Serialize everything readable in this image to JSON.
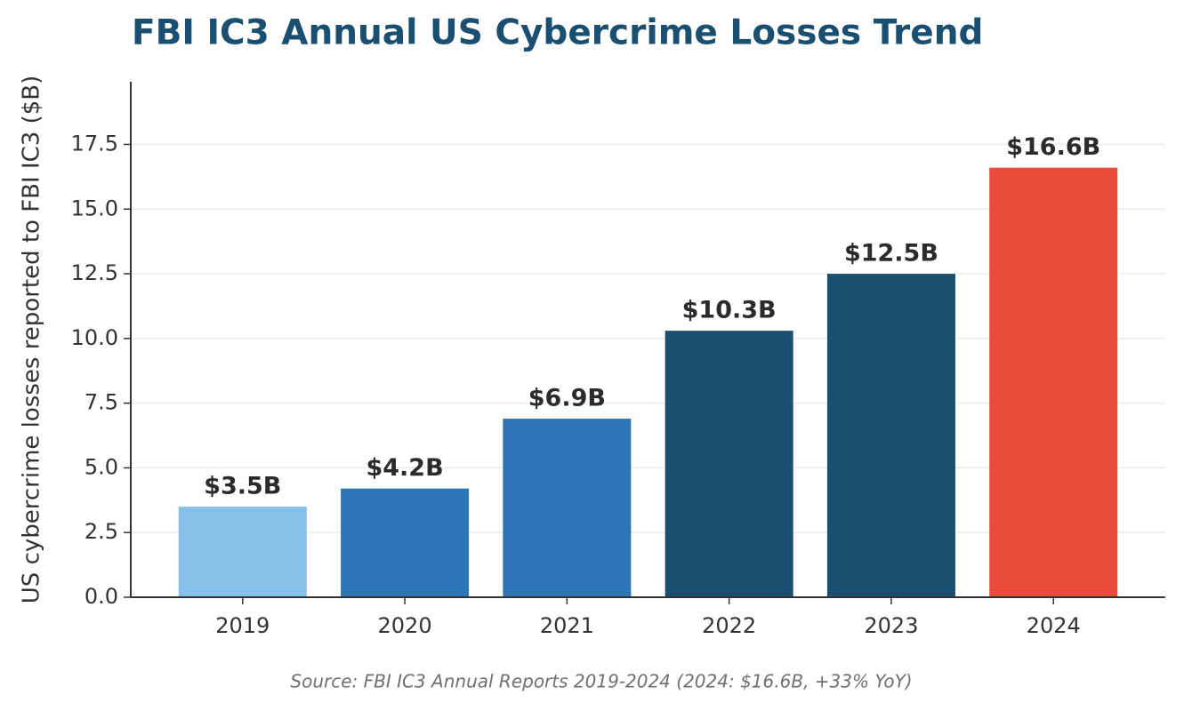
{
  "chart_data": {
    "type": "bar",
    "title": "FBI IC3 Annual US Cybercrime Losses Trend",
    "y_label": "US cybercrime losses reported to FBI IC3 ($B)",
    "source": "Source: FBI IC3 Annual Reports 2019-2024 (2024: $16.6B, +33% YoY)",
    "categories": [
      "2019",
      "2020",
      "2021",
      "2022",
      "2023",
      "2024"
    ],
    "values": [
      3.5,
      4.2,
      6.9,
      10.3,
      12.5,
      16.6
    ],
    "value_labels": [
      "$3.5B",
      "$4.2B",
      "$6.9B",
      "$10.3B",
      "$12.5B",
      "$16.6B"
    ],
    "colors": [
      "#85c1e9",
      "#2e75b6",
      "#2e75b6",
      "#1b4f72",
      "#1b4f72",
      "#e74c3c"
    ],
    "ylim": [
      0,
      19.92
    ],
    "yticks": [
      {
        "value": 0,
        "label": "0.0"
      },
      2.5,
      {
        "value": 5,
        "label": "5.0"
      },
      7.5,
      {
        "value": 10,
        "label": "10.0"
      },
      12.5,
      {
        "value": 15,
        "label": "15.0"
      },
      17.5
    ],
    "grid": true
  }
}
